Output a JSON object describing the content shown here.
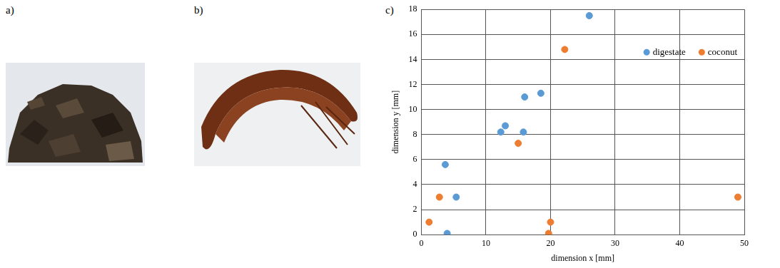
{
  "panel_labels": [
    "a)",
    "b)",
    "c)"
  ],
  "chart_data": {
    "type": "scatter",
    "x_label": "dimension x [mm]",
    "y_label": "dimension y [mm]",
    "xlim": [
      0,
      50
    ],
    "xticks": [
      0,
      10,
      20,
      30,
      40,
      50
    ],
    "ylim": [
      0,
      18
    ],
    "yticks": [
      0,
      2,
      4,
      6,
      8,
      10,
      12,
      14,
      16,
      18
    ],
    "grid": true,
    "legend": "upper right",
    "marker": "circle",
    "series": [
      {
        "name": "digestate",
        "color": "#5b9bd5",
        "x": [
          26,
          16,
          18.5,
          13,
          12.3,
          15.8,
          3.7,
          5.4,
          4
        ],
        "values": [
          17.5,
          11,
          11.3,
          8.7,
          8.2,
          8.2,
          5.6,
          3,
          0.1
        ]
      },
      {
        "name": "coconut",
        "color": "#ed7d31",
        "x": [
          22.2,
          15,
          2.8,
          1.2,
          20,
          19.7,
          49
        ],
        "values": [
          14.8,
          7.3,
          3,
          1,
          1,
          0.1,
          3
        ]
      }
    ]
  }
}
